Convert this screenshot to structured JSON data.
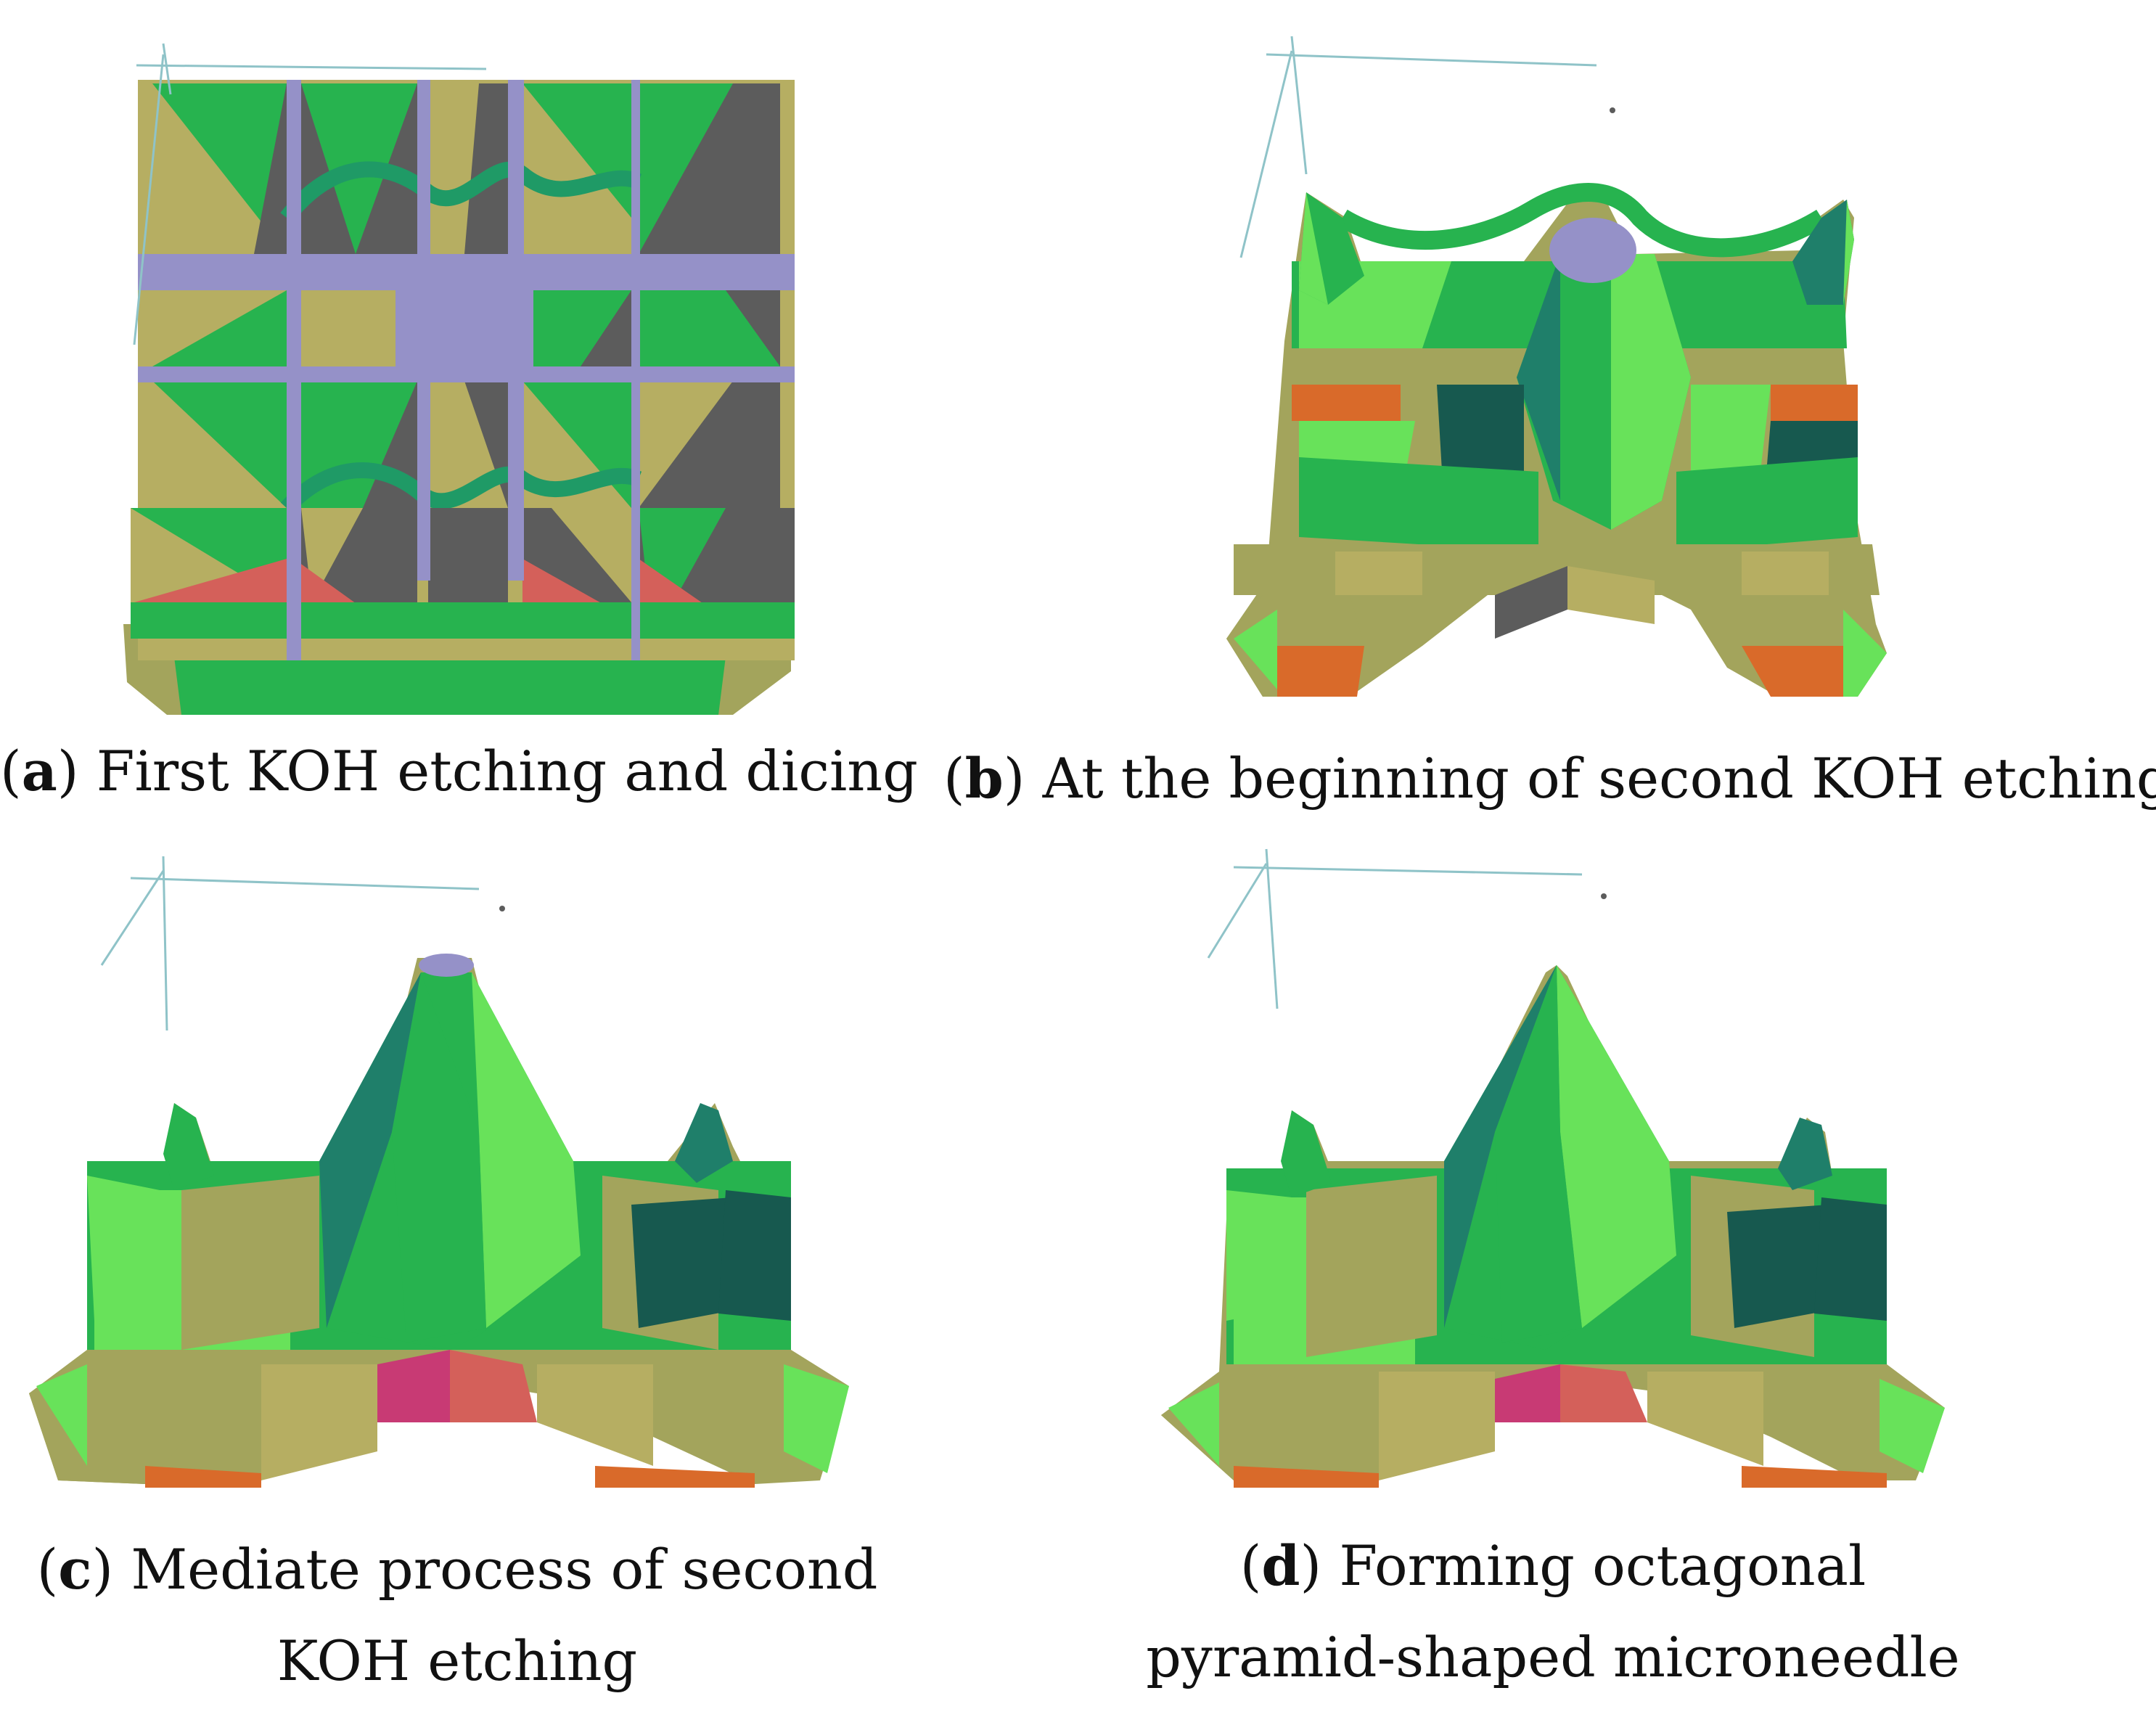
{
  "palette": {
    "green": "#27b34f",
    "light_green": "#68e25a",
    "teal": "#1f7f6a",
    "dark_teal": "#17594f",
    "olive": "#a3a45c",
    "khaki": "#b6ae62",
    "gray": "#5c5c5c",
    "lavender": "#9591c8",
    "salmon": "#d4605a",
    "orange": "#d96a2a",
    "magenta": "#c83a74",
    "axis": "#8fc3c8"
  },
  "panels": [
    {
      "id": "a",
      "letter": "a",
      "caption_lines": [
        "First KOH etching and dicing"
      ]
    },
    {
      "id": "b",
      "letter": "b",
      "caption_lines": [
        "At the beginning of second KOH etching"
      ]
    },
    {
      "id": "c",
      "letter": "c",
      "caption_lines": [
        "Mediate process of second",
        "KOH etching"
      ]
    },
    {
      "id": "d",
      "letter": "d",
      "caption_lines": [
        "Forming octagonal",
        "pyramid-shaped microneedle"
      ]
    }
  ]
}
